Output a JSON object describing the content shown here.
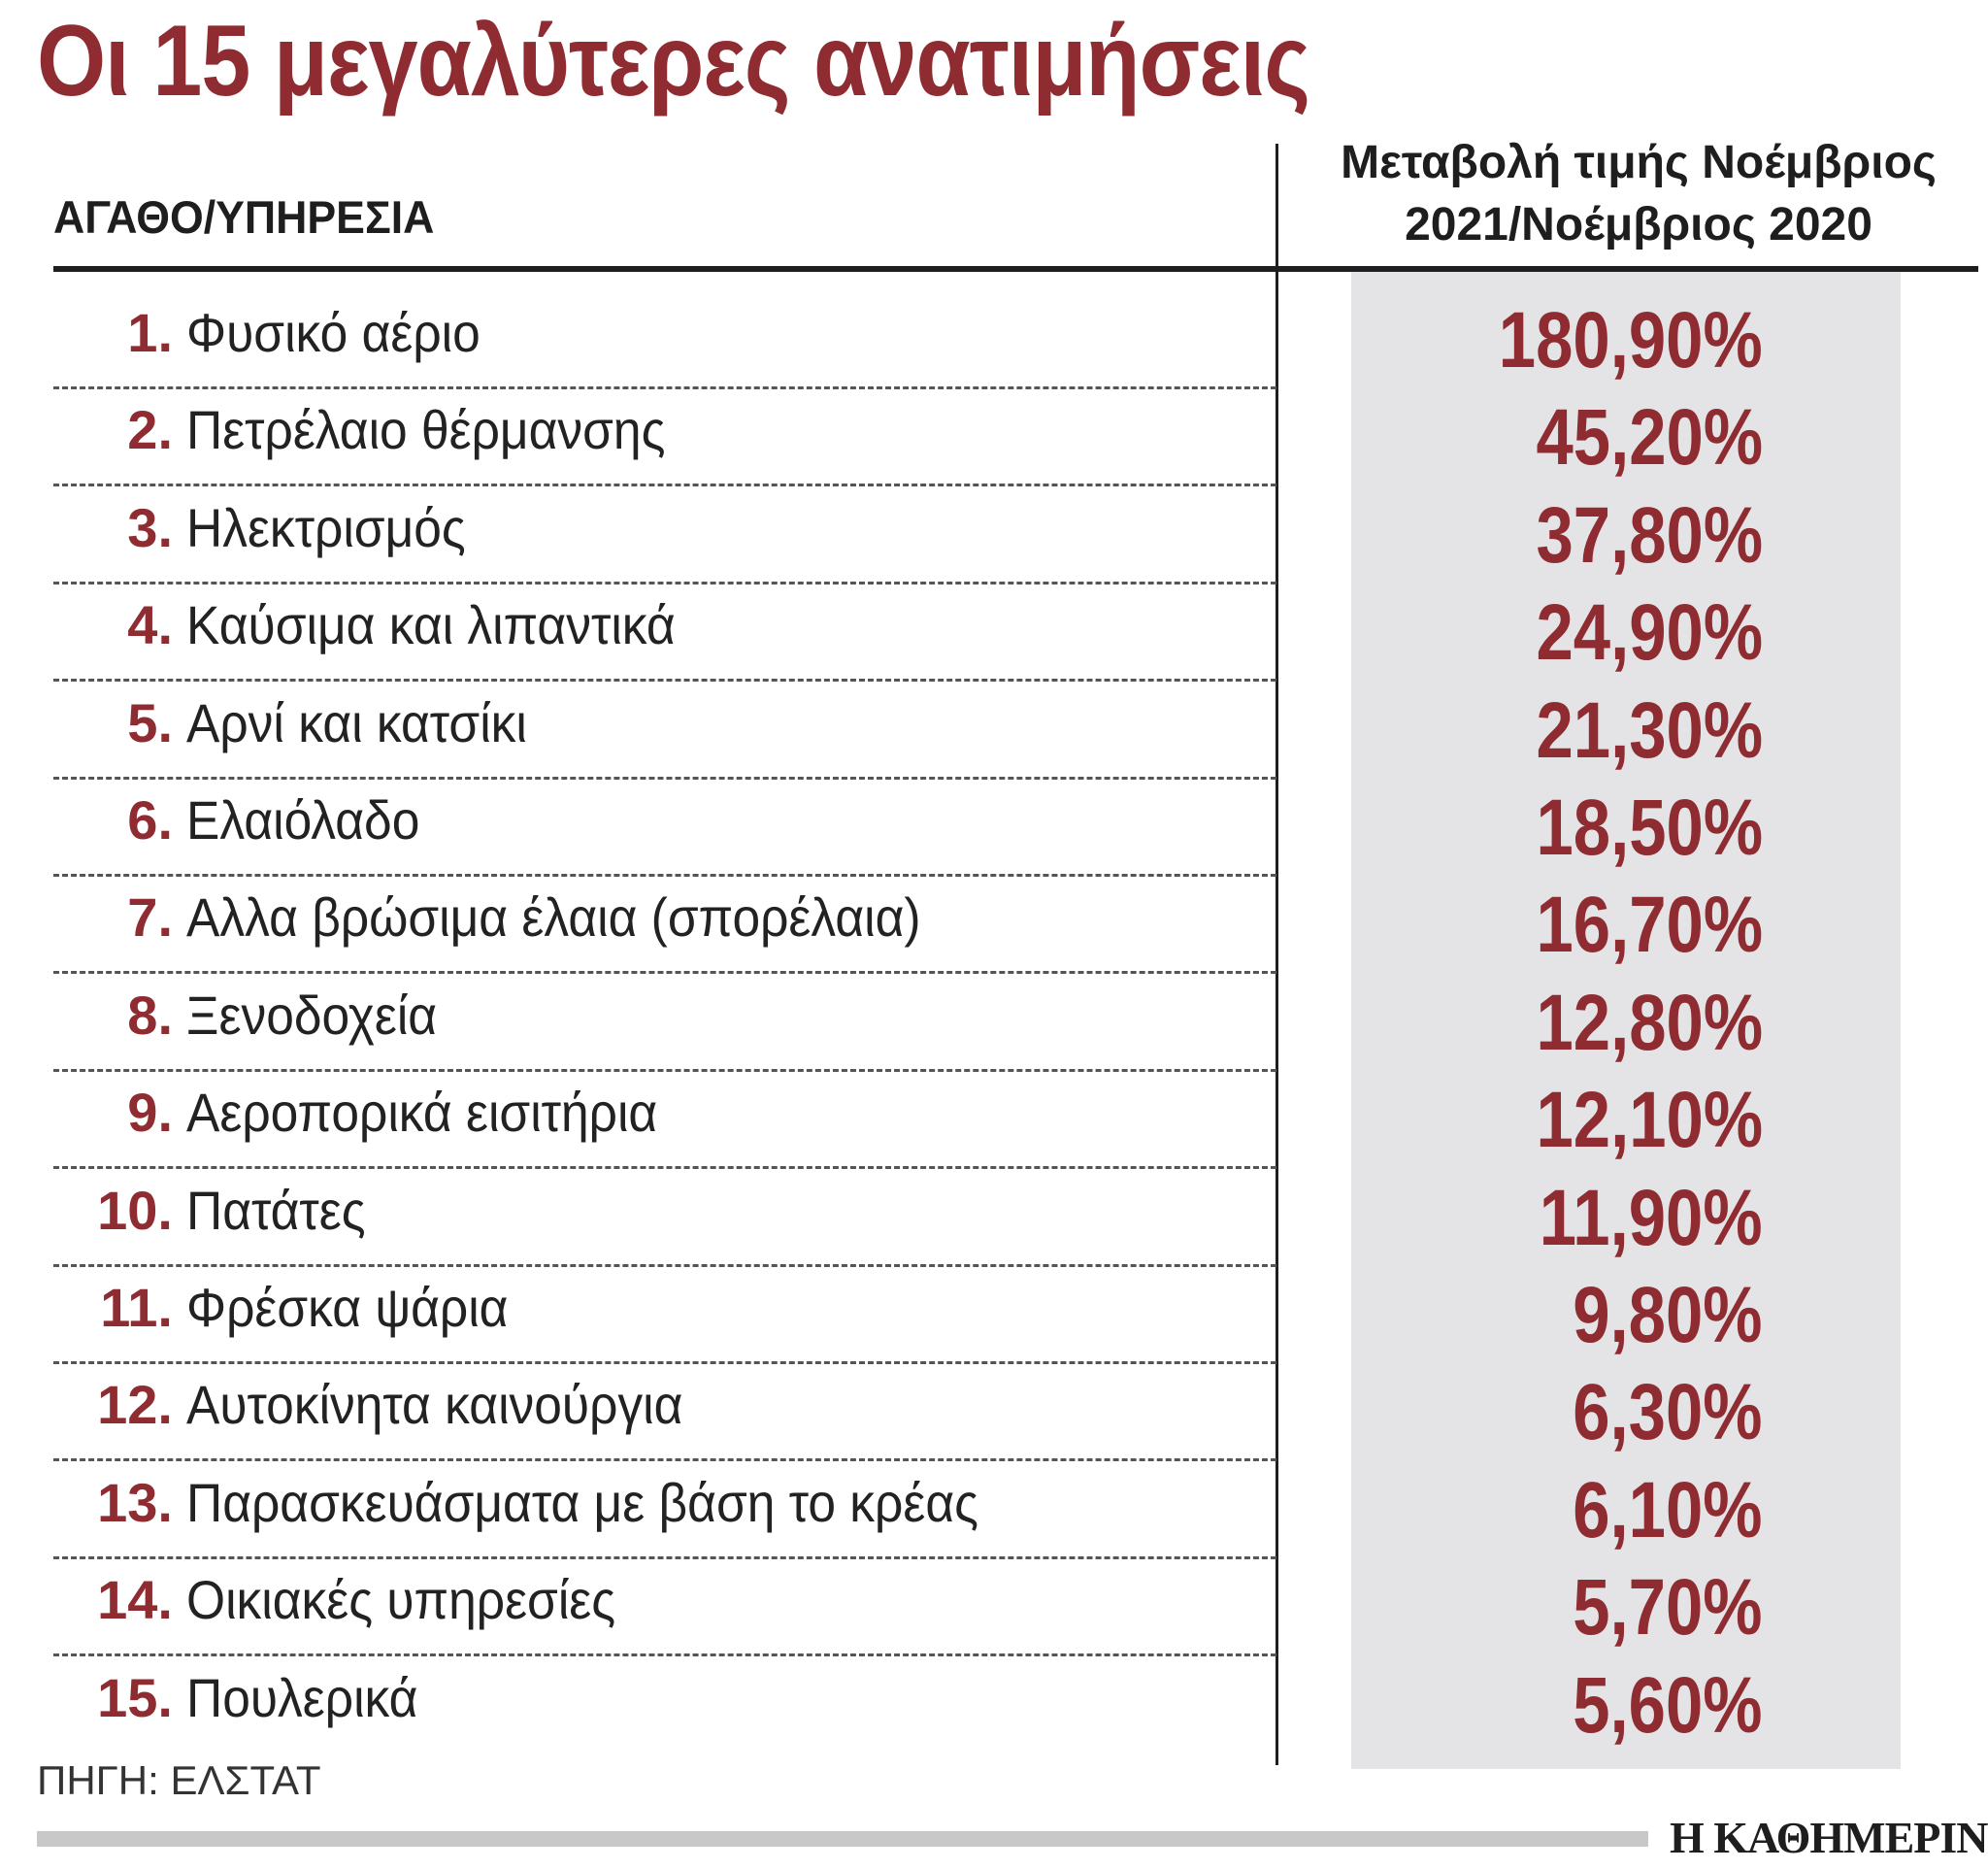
{
  "title": "Οι 15 μεγαλύτερες ανατιμήσεις",
  "column_left": "ΑΓΑΘΟ/ΥΠΗΡΕΣΙΑ",
  "column_right_line1": "Μεταβολή τιμής Νοέμβριος",
  "column_right_line2": "2021/Νοέμβριος 2020",
  "source": "ΠΗΓΗ: ΕΛΣΤΑΤ",
  "brand": "Η ΚΑΘΗΜΕΡΙΝΗ",
  "colors": {
    "accent": "#8e2c32",
    "value_bg": "#e4e4e6",
    "text": "#1e1e1e"
  },
  "chart_data": {
    "type": "table",
    "title": "Οι 15 μεγαλύτερες ανατιμήσεις",
    "columns": [
      "ΑΓΑΘΟ/ΥΠΗΡΕΣΙΑ",
      "Μεταβολή τιμής Νοέμβριος 2021/Νοέμβριος 2020"
    ],
    "rows": [
      {
        "rank": "1.",
        "item": "Φυσικό αέριο",
        "value": "180,90%"
      },
      {
        "rank": "2.",
        "item": "Πετρέλαιο θέρμανσης",
        "value": "45,20%"
      },
      {
        "rank": "3.",
        "item": "Ηλεκτρισμός",
        "value": "37,80%"
      },
      {
        "rank": "4.",
        "item": "Καύσιμα και λιπαντικά",
        "value": "24,90%"
      },
      {
        "rank": "5.",
        "item": "Αρνί και κατσίκι",
        "value": "21,30%"
      },
      {
        "rank": "6.",
        "item": "Ελαιόλαδο",
        "value": "18,50%"
      },
      {
        "rank": "7.",
        "item": "Αλλα βρώσιμα έλαια (σπορέλαια)",
        "value": "16,70%"
      },
      {
        "rank": "8.",
        "item": "Ξενοδοχεία",
        "value": "12,80%"
      },
      {
        "rank": "9.",
        "item": "Αεροπορικά εισιτήρια",
        "value": "12,10%"
      },
      {
        "rank": "10.",
        "item": "Πατάτες",
        "value": "11,90%"
      },
      {
        "rank": "11.",
        "item": "Φρέσκα ψάρια",
        "value": "9,80%"
      },
      {
        "rank": "12.",
        "item": "Αυτοκίνητα καινούργια",
        "value": "6,30%"
      },
      {
        "rank": "13.",
        "item": "Παρασκευάσματα με βάση το κρέας",
        "value": "6,10%"
      },
      {
        "rank": "14.",
        "item": "Οικιακές υπηρεσίες",
        "value": "5,70%"
      },
      {
        "rank": "15.",
        "item": "Πουλερικά",
        "value": "5,60%"
      }
    ]
  }
}
